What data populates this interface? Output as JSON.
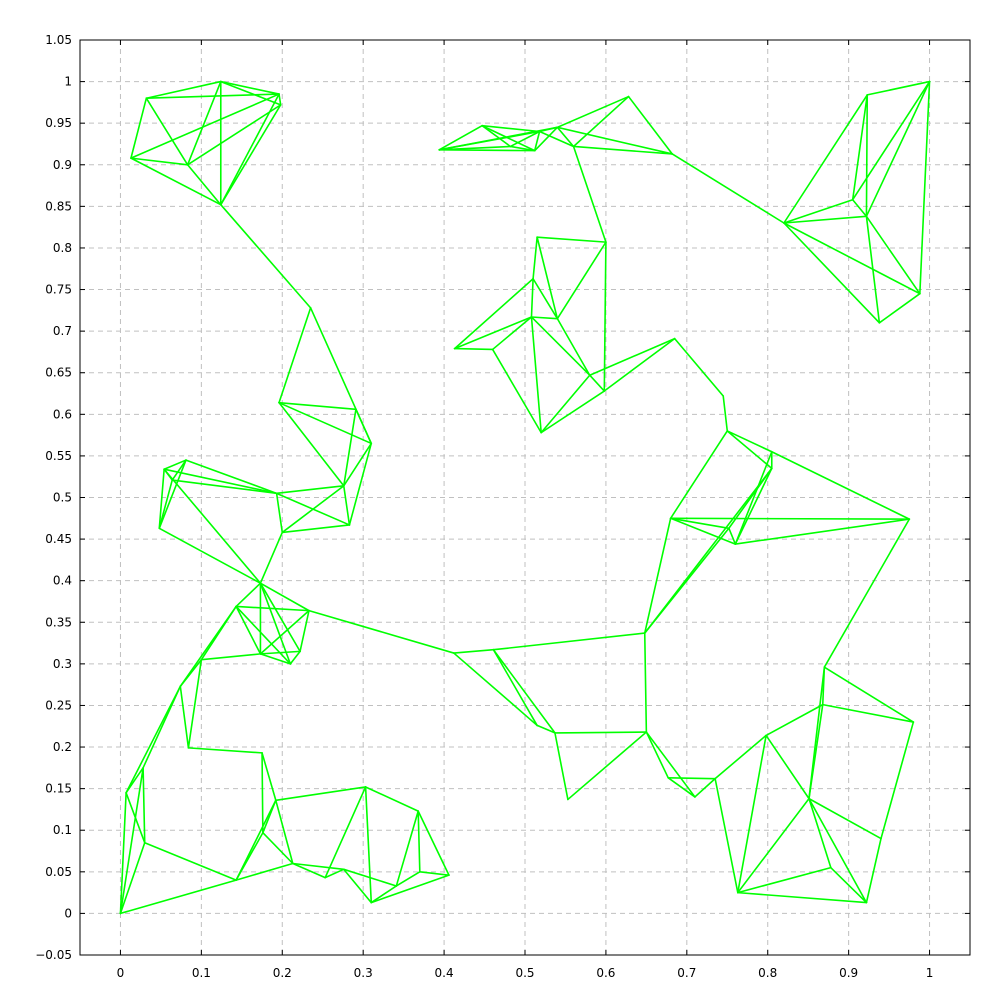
{
  "chart_data": {
    "type": "line",
    "title": "",
    "xlabel": "",
    "ylabel": "",
    "xlim": [
      -0.05,
      1.05
    ],
    "ylim": [
      -0.05,
      1.05
    ],
    "grid": true,
    "legend": "none",
    "series": [
      {
        "color": "#00ff00",
        "nodes": [
          [
            0.0,
            0.0
          ],
          [
            0.007,
            0.145
          ],
          [
            0.028,
            0.175
          ],
          [
            0.03,
            0.085
          ],
          [
            0.074,
            0.273
          ],
          [
            0.084,
            0.199
          ],
          [
            0.1,
            0.305
          ],
          [
            0.143,
            0.04
          ],
          [
            0.143,
            0.369
          ],
          [
            0.175,
            0.193
          ],
          [
            0.173,
            0.397
          ],
          [
            0.173,
            0.312
          ],
          [
            0.192,
            0.136
          ],
          [
            0.176,
            0.097
          ],
          [
            0.21,
            0.3
          ],
          [
            0.222,
            0.315
          ],
          [
            0.213,
            0.06
          ],
          [
            0.233,
            0.364
          ],
          [
            0.253,
            0.043
          ],
          [
            0.276,
            0.053
          ],
          [
            0.31,
            0.013
          ],
          [
            0.303,
            0.152
          ],
          [
            0.341,
            0.033
          ],
          [
            0.368,
            0.123
          ],
          [
            0.37,
            0.05
          ],
          [
            0.406,
            0.046
          ],
          [
            0.412,
            0.313
          ],
          [
            0.461,
            0.317
          ],
          [
            0.515,
            0.226
          ],
          [
            0.537,
            0.217
          ],
          [
            0.553,
            0.137
          ],
          [
            0.65,
            0.218
          ],
          [
            0.677,
            0.163
          ],
          [
            0.71,
            0.14
          ],
          [
            0.735,
            0.162
          ],
          [
            0.798,
            0.214
          ],
          [
            0.763,
            0.025
          ],
          [
            0.851,
            0.138
          ],
          [
            0.868,
            0.251
          ],
          [
            0.87,
            0.296
          ],
          [
            0.878,
            0.055
          ],
          [
            0.922,
            0.013
          ],
          [
            0.94,
            0.09
          ],
          [
            0.98,
            0.23
          ],
          [
            0.648,
            0.337
          ],
          [
            0.68,
            0.475
          ],
          [
            0.752,
            0.463
          ],
          [
            0.76,
            0.444
          ],
          [
            0.75,
            0.58
          ],
          [
            0.805,
            0.535
          ],
          [
            0.805,
            0.555
          ],
          [
            0.975,
            0.474
          ],
          [
            0.745,
            0.622
          ],
          [
            0.685,
            0.691
          ],
          [
            0.58,
            0.647
          ],
          [
            0.598,
            0.628
          ],
          [
            0.52,
            0.578
          ],
          [
            0.46,
            0.678
          ],
          [
            0.413,
            0.679
          ],
          [
            0.508,
            0.717
          ],
          [
            0.51,
            0.763
          ],
          [
            0.54,
            0.715
          ],
          [
            0.515,
            0.813
          ],
          [
            0.6,
            0.807
          ],
          [
            0.394,
            0.918
          ],
          [
            0.447,
            0.947
          ],
          [
            0.482,
            0.922
          ],
          [
            0.512,
            0.917
          ],
          [
            0.518,
            0.94
          ],
          [
            0.54,
            0.945
          ],
          [
            0.56,
            0.922
          ],
          [
            0.628,
            0.982
          ],
          [
            0.682,
            0.913
          ],
          [
            0.82,
            0.83
          ],
          [
            0.905,
            0.858
          ],
          [
            0.922,
            0.838
          ],
          [
            0.923,
            0.984
          ],
          [
            1.0,
            1.0
          ],
          [
            0.938,
            0.71
          ],
          [
            0.988,
            0.745
          ],
          [
            0.013,
            0.908
          ],
          [
            0.032,
            0.98
          ],
          [
            0.083,
            0.9
          ],
          [
            0.124,
            1.0
          ],
          [
            0.124,
            0.852
          ],
          [
            0.196,
            0.985
          ],
          [
            0.198,
            0.972
          ],
          [
            0.235,
            0.728
          ],
          [
            0.196,
            0.614
          ],
          [
            0.291,
            0.606
          ],
          [
            0.31,
            0.565
          ],
          [
            0.276,
            0.514
          ],
          [
            0.283,
            0.467
          ],
          [
            0.2,
            0.458
          ],
          [
            0.193,
            0.505
          ],
          [
            0.054,
            0.534
          ],
          [
            0.064,
            0.521
          ],
          [
            0.081,
            0.545
          ],
          [
            0.048,
            0.463
          ]
        ],
        "edges": [
          [
            0,
            1
          ],
          [
            0,
            2
          ],
          [
            0,
            7
          ],
          [
            0,
            3
          ],
          [
            1,
            2
          ],
          [
            1,
            3
          ],
          [
            2,
            3
          ],
          [
            1,
            4
          ],
          [
            2,
            4
          ],
          [
            3,
            7
          ],
          [
            4,
            5
          ],
          [
            4,
            6
          ],
          [
            4,
            8
          ],
          [
            5,
            6
          ],
          [
            5,
            9
          ],
          [
            6,
            8
          ],
          [
            6,
            11
          ],
          [
            8,
            10
          ],
          [
            8,
            11
          ],
          [
            8,
            14
          ],
          [
            8,
            17
          ],
          [
            9,
            12
          ],
          [
            9,
            13
          ],
          [
            7,
            16
          ],
          [
            7,
            12
          ],
          [
            7,
            13
          ],
          [
            12,
            13
          ],
          [
            12,
            16
          ],
          [
            12,
            21
          ],
          [
            13,
            16
          ],
          [
            16,
            18
          ],
          [
            16,
            19
          ],
          [
            18,
            19
          ],
          [
            18,
            21
          ],
          [
            19,
            20
          ],
          [
            19,
            22
          ],
          [
            20,
            22
          ],
          [
            20,
            21
          ],
          [
            21,
            23
          ],
          [
            22,
            24
          ],
          [
            22,
            23
          ],
          [
            23,
            24
          ],
          [
            23,
            25
          ],
          [
            24,
            25
          ],
          [
            20,
            25
          ],
          [
            10,
            11
          ],
          [
            10,
            14
          ],
          [
            10,
            15
          ],
          [
            10,
            17
          ],
          [
            11,
            14
          ],
          [
            11,
            15
          ],
          [
            14,
            15
          ],
          [
            15,
            17
          ],
          [
            11,
            17
          ],
          [
            10,
            93
          ],
          [
            10,
            95
          ],
          [
            17,
            26
          ],
          [
            26,
            27
          ],
          [
            26,
            28
          ],
          [
            27,
            28
          ],
          [
            27,
            29
          ],
          [
            28,
            29
          ],
          [
            29,
            30
          ],
          [
            29,
            31
          ],
          [
            30,
            31
          ],
          [
            31,
            32
          ],
          [
            31,
            33
          ],
          [
            32,
            33
          ],
          [
            32,
            34
          ],
          [
            33,
            34
          ],
          [
            34,
            35
          ],
          [
            34,
            36
          ],
          [
            35,
            36
          ],
          [
            35,
            38
          ],
          [
            35,
            37
          ],
          [
            36,
            37
          ],
          [
            36,
            40
          ],
          [
            36,
            41
          ],
          [
            37,
            38
          ],
          [
            37,
            39
          ],
          [
            37,
            40
          ],
          [
            37,
            41
          ],
          [
            37,
            42
          ],
          [
            38,
            39
          ],
          [
            38,
            43
          ],
          [
            39,
            43
          ],
          [
            40,
            41
          ],
          [
            41,
            42
          ],
          [
            42,
            43
          ],
          [
            39,
            51
          ],
          [
            44,
            27
          ],
          [
            44,
            31
          ],
          [
            44,
            45
          ],
          [
            44,
            46
          ],
          [
            44,
            49
          ],
          [
            45,
            46
          ],
          [
            45,
            47
          ],
          [
            45,
            48
          ],
          [
            46,
            47
          ],
          [
            46,
            49
          ],
          [
            47,
            49
          ],
          [
            47,
            51
          ],
          [
            47,
            50
          ],
          [
            48,
            49
          ],
          [
            48,
            50
          ],
          [
            48,
            52
          ],
          [
            49,
            50
          ],
          [
            50,
            51
          ],
          [
            45,
            51
          ],
          [
            52,
            53
          ],
          [
            53,
            54
          ],
          [
            53,
            55
          ],
          [
            54,
            55
          ],
          [
            54,
            56
          ],
          [
            54,
            59
          ],
          [
            55,
            56
          ],
          [
            55,
            63
          ],
          [
            56,
            57
          ],
          [
            56,
            59
          ],
          [
            57,
            58
          ],
          [
            57,
            59
          ],
          [
            58,
            59
          ],
          [
            58,
            60
          ],
          [
            59,
            60
          ],
          [
            59,
            61
          ],
          [
            60,
            61
          ],
          [
            60,
            62
          ],
          [
            61,
            62
          ],
          [
            61,
            63
          ],
          [
            62,
            63
          ],
          [
            61,
            54
          ],
          [
            63,
            70
          ],
          [
            64,
            65
          ],
          [
            64,
            66
          ],
          [
            64,
            67
          ],
          [
            64,
            68
          ],
          [
            64,
            69
          ],
          [
            65,
            66
          ],
          [
            65,
            67
          ],
          [
            65,
            68
          ],
          [
            66,
            67
          ],
          [
            66,
            68
          ],
          [
            67,
            68
          ],
          [
            67,
            69
          ],
          [
            68,
            69
          ],
          [
            68,
            70
          ],
          [
            69,
            70
          ],
          [
            69,
            71
          ],
          [
            69,
            72
          ],
          [
            70,
            71
          ],
          [
            70,
            72
          ],
          [
            71,
            72
          ],
          [
            72,
            73
          ],
          [
            73,
            74
          ],
          [
            73,
            75
          ],
          [
            73,
            76
          ],
          [
            73,
            78
          ],
          [
            73,
            79
          ],
          [
            74,
            75
          ],
          [
            74,
            76
          ],
          [
            74,
            77
          ],
          [
            75,
            76
          ],
          [
            75,
            77
          ],
          [
            75,
            78
          ],
          [
            75,
            79
          ],
          [
            76,
            77
          ],
          [
            77,
            79
          ],
          [
            78,
            79
          ],
          [
            80,
            81
          ],
          [
            80,
            82
          ],
          [
            80,
            84
          ],
          [
            80,
            85
          ],
          [
            81,
            82
          ],
          [
            81,
            83
          ],
          [
            81,
            85
          ],
          [
            82,
            83
          ],
          [
            82,
            84
          ],
          [
            82,
            86
          ],
          [
            83,
            84
          ],
          [
            83,
            85
          ],
          [
            83,
            86
          ],
          [
            84,
            85
          ],
          [
            84,
            86
          ],
          [
            85,
            86
          ],
          [
            84,
            87
          ],
          [
            87,
            88
          ],
          [
            87,
            90
          ],
          [
            88,
            89
          ],
          [
            88,
            90
          ],
          [
            88,
            91
          ],
          [
            89,
            90
          ],
          [
            89,
            91
          ],
          [
            90,
            91
          ],
          [
            90,
            92
          ],
          [
            91,
            92
          ],
          [
            91,
            93
          ],
          [
            92,
            93
          ],
          [
            92,
            94
          ],
          [
            93,
            94
          ],
          [
            91,
            94
          ],
          [
            94,
            95
          ],
          [
            94,
            96
          ],
          [
            94,
            97
          ],
          [
            95,
            96
          ],
          [
            95,
            97
          ],
          [
            95,
            98
          ],
          [
            96,
            97
          ],
          [
            96,
            98
          ],
          [
            97,
            98
          ],
          [
            98,
            10
          ]
        ]
      }
    ],
    "x_ticks": [
      "0",
      "0.1",
      "0.2",
      "0.3",
      "0.4",
      "0.5",
      "0.6",
      "0.7",
      "0.8",
      "0.9",
      "1"
    ],
    "y_ticks": [
      "−0.05",
      "0",
      "0.05",
      "0.1",
      "0.15",
      "0.2",
      "0.25",
      "0.3",
      "0.35",
      "0.4",
      "0.45",
      "0.5",
      "0.55",
      "0.6",
      "0.65",
      "0.7",
      "0.75",
      "0.8",
      "0.85",
      "0.9",
      "0.95",
      "1",
      "1.05"
    ],
    "x_tick_values": [
      0,
      0.1,
      0.2,
      0.3,
      0.4,
      0.5,
      0.6,
      0.7,
      0.8,
      0.9,
      1
    ],
    "y_tick_values": [
      -0.05,
      0,
      0.05,
      0.1,
      0.15,
      0.2,
      0.25,
      0.3,
      0.35,
      0.4,
      0.45,
      0.5,
      0.55,
      0.6,
      0.65,
      0.7,
      0.75,
      0.8,
      0.85,
      0.9,
      0.95,
      1,
      1.05
    ]
  }
}
